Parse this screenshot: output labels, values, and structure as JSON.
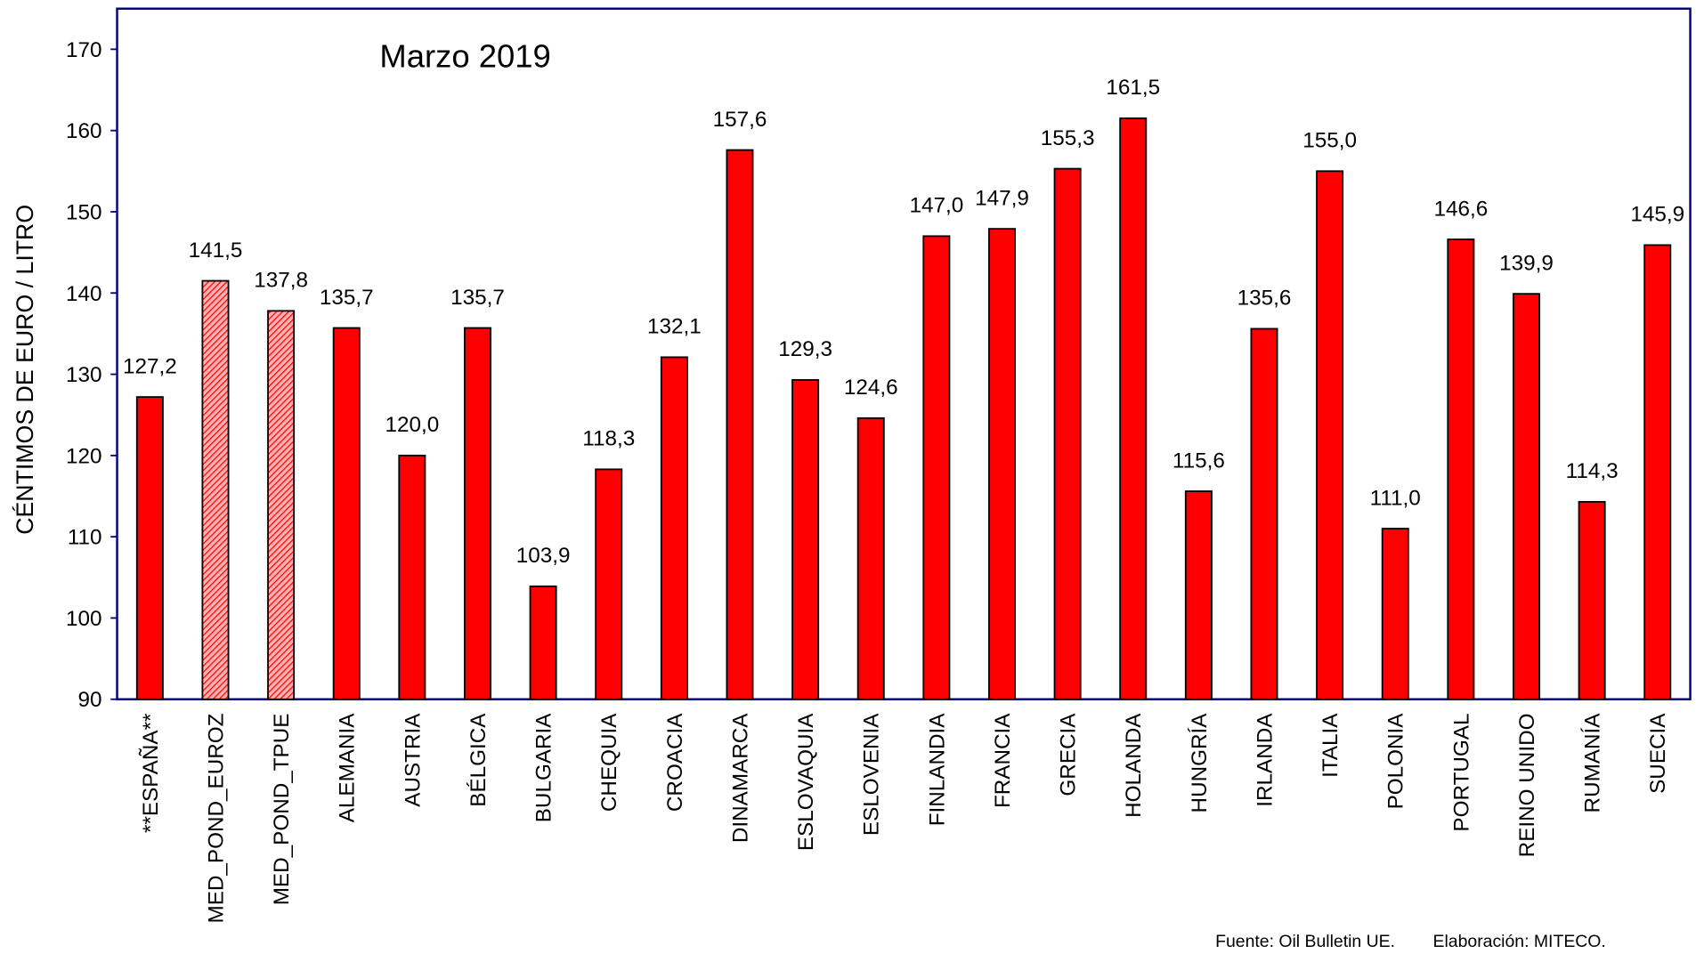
{
  "chart_data": {
    "type": "bar",
    "title": "Marzo 2019",
    "y_label": "CÉNTIMOS DE EURO / LITRO",
    "categories": [
      "**ESPAÑA**",
      "MED_POND_EUROZ",
      "MED_POND_TPUE",
      "ALEMANIA",
      "AUSTRIA",
      "BÉLGICA",
      "BULGARIA",
      "CHEQUIA",
      "CROACIA",
      "DINAMARCA",
      "ESLOVAQUIA",
      "ESLOVENIA",
      "FINLANDIA",
      "FRANCIA",
      "GRECIA",
      "HOLANDA",
      "HUNGRÍA",
      "IRLANDA",
      "ITALIA",
      "POLONIA",
      "PORTUGAL",
      "REINO UNIDO",
      "RUMANÍA",
      "SUECIA"
    ],
    "values": [
      127.2,
      141.5,
      137.8,
      135.7,
      120.0,
      135.7,
      103.9,
      118.3,
      132.1,
      157.6,
      129.3,
      124.6,
      147.0,
      147.9,
      155.3,
      161.5,
      115.6,
      135.6,
      155.0,
      111.0,
      146.6,
      139.9,
      114.3,
      145.9
    ],
    "value_labels": [
      "127,2",
      "141,5",
      "137,8",
      "135,7",
      "120,0",
      "135,7",
      "103,9",
      "118,3",
      "132,1",
      "157,6",
      "129,3",
      "124,6",
      "147,0",
      "147,9",
      "155,3",
      "161,5",
      "115,6",
      "135,6",
      "155,0",
      "111,0",
      "146,6",
      "139,9",
      "114,3",
      "145,9"
    ],
    "color": "#ff0000",
    "hatched_indices": [
      1,
      2
    ],
    "ylim": [
      90,
      175
    ],
    "yticks": [
      90,
      100,
      110,
      120,
      130,
      140,
      150,
      160,
      170
    ],
    "source": "Fuente: Oil Bulletin UE.",
    "credit": "Elaboración: MITECO."
  }
}
